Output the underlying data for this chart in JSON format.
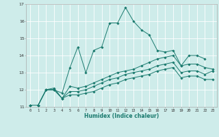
{
  "xlabel": "Humidex (Indice chaleur)",
  "background_color": "#ceecea",
  "grid_color": "#ffffff",
  "line_color": "#1a7a6e",
  "xlim": [
    -0.5,
    23.5
  ],
  "ylim": [
    11,
    17
  ],
  "yticks": [
    11,
    12,
    13,
    14,
    15,
    16,
    17
  ],
  "xticks": [
    0,
    1,
    2,
    3,
    4,
    5,
    6,
    7,
    8,
    9,
    10,
    11,
    12,
    13,
    14,
    15,
    16,
    17,
    18,
    19,
    20,
    21,
    22,
    23
  ],
  "line1_x": [
    0,
    1,
    2,
    3,
    4,
    5,
    6,
    7,
    8,
    9,
    10,
    11,
    12,
    13,
    14,
    15,
    16,
    17,
    18,
    19,
    20,
    21,
    22
  ],
  "line1_y": [
    11.1,
    11.1,
    12.0,
    12.0,
    11.8,
    13.3,
    14.5,
    13.0,
    14.3,
    14.5,
    15.9,
    15.9,
    16.8,
    16.0,
    15.5,
    15.2,
    14.3,
    14.2,
    14.3,
    13.4,
    14.0,
    14.0,
    13.8
  ],
  "line2_x": [
    0,
    1,
    2,
    3,
    4,
    5,
    6,
    7,
    8,
    9,
    10,
    11,
    12,
    13,
    14,
    15,
    16,
    17,
    18,
    19,
    20,
    21,
    22,
    23
  ],
  "line2_y": [
    11.1,
    11.1,
    12.0,
    12.1,
    11.5,
    12.2,
    12.1,
    12.2,
    12.4,
    12.6,
    12.8,
    13.0,
    13.1,
    13.2,
    13.4,
    13.6,
    13.8,
    13.9,
    14.0,
    13.4,
    13.5,
    13.5,
    13.3,
    13.2
  ],
  "line3_x": [
    0,
    1,
    2,
    3,
    4,
    5,
    6,
    7,
    8,
    9,
    10,
    11,
    12,
    13,
    14,
    15,
    16,
    17,
    18,
    19,
    20,
    21,
    22,
    23
  ],
  "line3_y": [
    11.1,
    11.1,
    12.0,
    12.0,
    11.5,
    11.9,
    11.9,
    12.0,
    12.2,
    12.4,
    12.6,
    12.7,
    12.9,
    13.0,
    13.1,
    13.2,
    13.4,
    13.5,
    13.6,
    13.0,
    13.1,
    13.1,
    12.9,
    13.1
  ],
  "line4_x": [
    0,
    1,
    2,
    3,
    4,
    5,
    6,
    7,
    8,
    9,
    10,
    11,
    12,
    13,
    14,
    15,
    16,
    17,
    18,
    19,
    20,
    21,
    22,
    23
  ],
  "line4_y": [
    11.1,
    11.1,
    12.0,
    12.0,
    11.5,
    11.7,
    11.7,
    11.8,
    11.9,
    12.1,
    12.3,
    12.4,
    12.6,
    12.7,
    12.8,
    12.9,
    13.1,
    13.2,
    13.3,
    12.7,
    12.8,
    12.8,
    12.6,
    12.6
  ]
}
